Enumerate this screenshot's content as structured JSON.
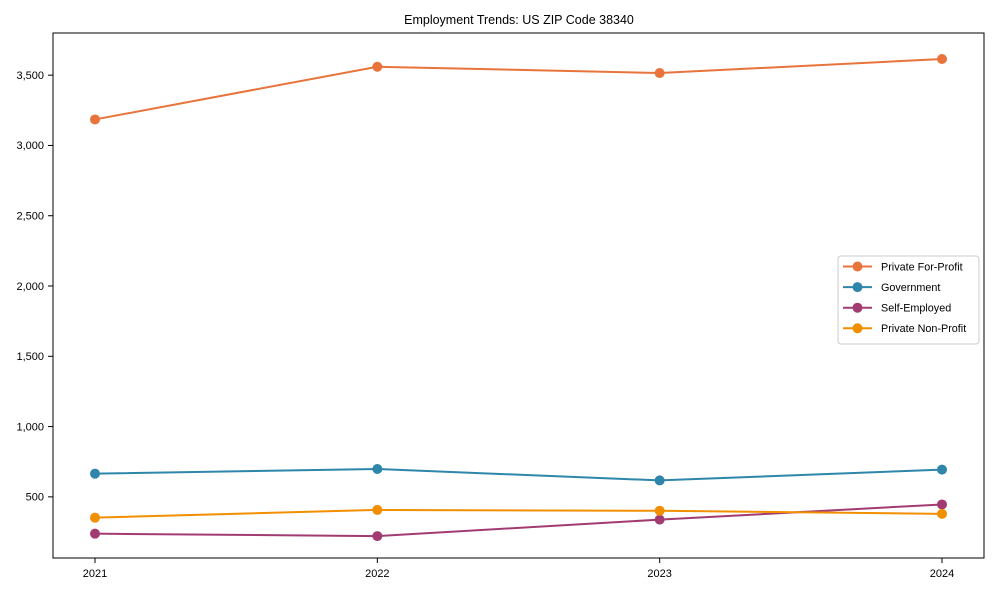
{
  "chart_data": {
    "type": "line",
    "title": "Employment Trends: US ZIP Code 38340",
    "categories": [
      "2021",
      "2022",
      "2023",
      "2024"
    ],
    "series": [
      {
        "name": "Private For-Profit",
        "color": "#E8743B",
        "values": [
          3185,
          3560,
          3515,
          3615
        ]
      },
      {
        "name": "Government",
        "color": "#2E86AB",
        "values": [
          665,
          698,
          617,
          694
        ]
      },
      {
        "name": "Self-Employed",
        "color": "#A23B72",
        "values": [
          238,
          221,
          338,
          446
        ]
      },
      {
        "name": "Private Non-Profit",
        "color": "#F18F01",
        "values": [
          352,
          407,
          401,
          379
        ]
      }
    ],
    "xlabel": "",
    "ylabel": "",
    "ylim": [
      65,
      3800
    ],
    "yticks": [
      500,
      1000,
      1500,
      2000,
      2500,
      3000,
      3500
    ],
    "grid": false,
    "legend_position": "center-right",
    "marker": "circle",
    "line_width": 2,
    "marker_radius": 5,
    "axis_color": "#000000",
    "text_color": "#000000",
    "legend_border_color": "#cccccc",
    "background": "#ffffff"
  }
}
